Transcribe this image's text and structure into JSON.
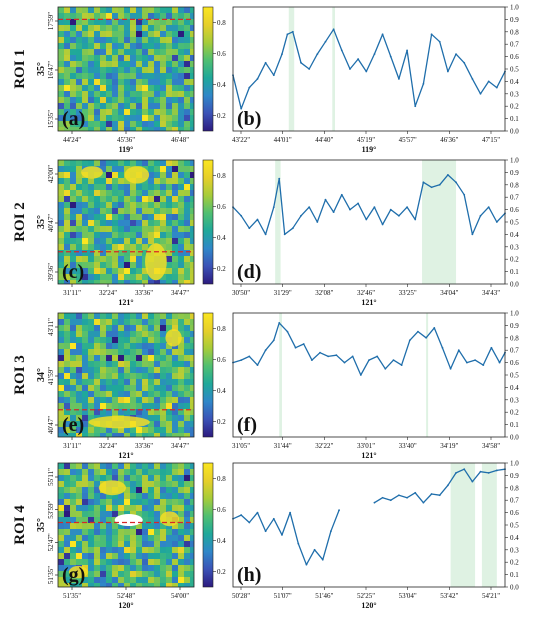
{
  "colors": {
    "line": "#1f6eab",
    "highlight": "#dff2e3",
    "dashed": "#d62728",
    "axis": "#222222",
    "cmap": [
      "#2c1a7e",
      "#3b52b6",
      "#2f87c8",
      "#1fa89a",
      "#4fbf72",
      "#a6cc3a",
      "#e6cf2a",
      "#fbe620"
    ]
  },
  "colorbar": {
    "ticks": [
      "0.2",
      "0.4",
      "0.6",
      "0.8"
    ],
    "range": [
      0.1,
      0.9
    ]
  },
  "panels": [
    {
      "roi_label": "ROI 1",
      "map_letter": "(a)",
      "chart_letter": "(b)",
      "map_lat_deg": "35°",
      "map_yticks": [
        "17'59\"",
        "16'47\"",
        "15'35\""
      ],
      "map_xticks": [
        "44'24\"",
        "45'36\"",
        "46'48\""
      ],
      "map_xdeg": "119°",
      "dashed_row": 0.1,
      "bright_blobs": [],
      "white_blob": false
    },
    {
      "roi_label": "ROI 2",
      "map_letter": "(c)",
      "chart_letter": "(d)",
      "map_lat_deg": "35°",
      "map_yticks": [
        "42'00\"",
        "40'47\"",
        "39'36\""
      ],
      "map_xticks": [
        "31'11\"",
        "32'24\"",
        "33'36\"",
        "34'47\""
      ],
      "map_xdeg": "121°",
      "dashed_row": 0.74,
      "bright_blobs": [
        [
          0.72,
          0.82,
          0.16,
          0.3
        ],
        [
          0.58,
          0.12,
          0.18,
          0.14
        ],
        [
          0.25,
          0.1,
          0.16,
          0.1
        ]
      ],
      "white_blob": false
    },
    {
      "roi_label": "ROI 3",
      "map_letter": "(e)",
      "chart_letter": "(f)",
      "map_lat_deg": "34°",
      "map_yticks": [
        "43'11\"",
        "41'59\"",
        "40'47\""
      ],
      "map_xticks": [
        "31'11\"",
        "32'24\"",
        "33'36\"",
        "34'47\""
      ],
      "map_xdeg": "121°",
      "dashed_row": 0.78,
      "bright_blobs": [
        [
          0.45,
          0.88,
          0.45,
          0.1
        ],
        [
          0.85,
          0.2,
          0.12,
          0.14
        ]
      ],
      "white_blob": false
    },
    {
      "roi_label": "ROI 4",
      "map_letter": "(g)",
      "chart_letter": "(h)",
      "map_lat_deg": "35°",
      "map_yticks": [
        "55'11\"",
        "53'59\"",
        "52'47\"",
        "51'35\""
      ],
      "map_xticks": [
        "51'35\"",
        "52'48\"",
        "54'00\""
      ],
      "map_xdeg": "120°",
      "dashed_row": 0.48,
      "bright_blobs": [
        [
          0.4,
          0.2,
          0.2,
          0.12
        ],
        [
          0.15,
          0.88,
          0.14,
          0.1
        ],
        [
          0.82,
          0.45,
          0.14,
          0.12
        ]
      ],
      "white_blob": true
    }
  ],
  "chart_data": [
    {
      "type": "line",
      "panel": "(b)",
      "xlabel": "119°",
      "xtick_labels": [
        "43'22\"",
        "44'01\"",
        "44'40\"",
        "45'19\"",
        "45'57\"",
        "46'36\"",
        "47'15\""
      ],
      "ylim": [
        0.0,
        1.0
      ],
      "yticks": [
        0.0,
        0.1,
        0.2,
        0.3,
        0.4,
        0.5,
        0.6,
        0.7,
        0.8,
        0.9,
        1.0
      ],
      "highlights": [
        [
          0.205,
          0.225
        ],
        [
          0.365,
          0.375
        ]
      ],
      "x": [
        0.0,
        0.03,
        0.06,
        0.09,
        0.12,
        0.15,
        0.18,
        0.2,
        0.22,
        0.25,
        0.28,
        0.31,
        0.34,
        0.37,
        0.4,
        0.43,
        0.46,
        0.49,
        0.52,
        0.55,
        0.58,
        0.61,
        0.64,
        0.67,
        0.7,
        0.73,
        0.76,
        0.79,
        0.82,
        0.85,
        0.88,
        0.91,
        0.94,
        0.97,
        1.0
      ],
      "y": [
        0.45,
        0.18,
        0.35,
        0.42,
        0.55,
        0.45,
        0.62,
        0.78,
        0.8,
        0.55,
        0.5,
        0.62,
        0.72,
        0.82,
        0.65,
        0.5,
        0.58,
        0.48,
        0.62,
        0.78,
        0.6,
        0.42,
        0.65,
        0.2,
        0.38,
        0.78,
        0.72,
        0.48,
        0.62,
        0.55,
        0.42,
        0.3,
        0.4,
        0.35,
        0.48
      ]
    },
    {
      "type": "line",
      "panel": "(d)",
      "xlabel": "121°",
      "xtick_labels": [
        "30'50\"",
        "31'29\"",
        "32'08\"",
        "32'46\"",
        "33'25\"",
        "34'04\"",
        "34'43\""
      ],
      "ylim": [
        0.0,
        1.0
      ],
      "yticks": [
        0.0,
        0.1,
        0.2,
        0.3,
        0.4,
        0.5,
        0.6,
        0.7,
        0.8,
        0.9,
        1.0
      ],
      "highlights": [
        [
          0.155,
          0.175
        ],
        [
          0.695,
          0.82
        ]
      ],
      "x": [
        0.0,
        0.03,
        0.06,
        0.09,
        0.12,
        0.15,
        0.17,
        0.19,
        0.22,
        0.25,
        0.28,
        0.31,
        0.34,
        0.37,
        0.4,
        0.43,
        0.46,
        0.49,
        0.52,
        0.55,
        0.58,
        0.61,
        0.64,
        0.67,
        0.7,
        0.73,
        0.76,
        0.79,
        0.82,
        0.85,
        0.88,
        0.91,
        0.94,
        0.97,
        1.0
      ],
      "y": [
        0.62,
        0.55,
        0.45,
        0.52,
        0.4,
        0.62,
        0.85,
        0.4,
        0.45,
        0.55,
        0.62,
        0.5,
        0.68,
        0.58,
        0.72,
        0.6,
        0.65,
        0.52,
        0.62,
        0.48,
        0.6,
        0.55,
        0.62,
        0.52,
        0.82,
        0.78,
        0.8,
        0.88,
        0.82,
        0.72,
        0.4,
        0.55,
        0.62,
        0.5,
        0.57
      ]
    },
    {
      "type": "line",
      "panel": "(f)",
      "xlabel": "121°",
      "xtick_labels": [
        "31'05\"",
        "31'44\"",
        "32'22\"",
        "33'01\"",
        "33'40\"",
        "34'19\"",
        "34'58\""
      ],
      "ylim": [
        0.0,
        1.0
      ],
      "yticks": [
        0.0,
        0.1,
        0.2,
        0.3,
        0.4,
        0.5,
        0.6,
        0.7,
        0.8,
        0.9,
        1.0
      ],
      "highlights": [
        [
          0.17,
          0.18
        ],
        [
          0.71,
          0.715
        ]
      ],
      "x": [
        0.0,
        0.03,
        0.06,
        0.09,
        0.12,
        0.15,
        0.17,
        0.2,
        0.23,
        0.26,
        0.29,
        0.32,
        0.35,
        0.38,
        0.41,
        0.44,
        0.47,
        0.5,
        0.53,
        0.56,
        0.59,
        0.62,
        0.65,
        0.68,
        0.71,
        0.74,
        0.77,
        0.8,
        0.83,
        0.86,
        0.89,
        0.92,
        0.95,
        0.98,
        1.0
      ],
      "y": [
        0.6,
        0.62,
        0.65,
        0.58,
        0.7,
        0.78,
        0.92,
        0.85,
        0.72,
        0.75,
        0.62,
        0.68,
        0.65,
        0.66,
        0.6,
        0.65,
        0.5,
        0.62,
        0.65,
        0.55,
        0.62,
        0.58,
        0.78,
        0.85,
        0.8,
        0.88,
        0.72,
        0.55,
        0.7,
        0.6,
        0.62,
        0.58,
        0.72,
        0.6,
        0.68
      ]
    },
    {
      "type": "line",
      "panel": "(h)",
      "xlabel": "120°",
      "xtick_labels": [
        "50'28\"",
        "51'07\"",
        "51'46\"",
        "52'25\"",
        "53'04\"",
        "53'42\"",
        "54'21\""
      ],
      "ylim": [
        0.0,
        1.0
      ],
      "yticks": [
        0.0,
        0.1,
        0.2,
        0.3,
        0.4,
        0.5,
        0.6,
        0.7,
        0.8,
        0.9,
        1.0
      ],
      "highlights": [
        [
          0.8,
          0.89
        ],
        [
          0.915,
          0.97
        ]
      ],
      "segments": [
        {
          "x": [
            0.0,
            0.03,
            0.06,
            0.09,
            0.12,
            0.15,
            0.18,
            0.21,
            0.24,
            0.27,
            0.3,
            0.33,
            0.36,
            0.39
          ],
          "y": [
            0.55,
            0.58,
            0.52,
            0.6,
            0.45,
            0.55,
            0.42,
            0.6,
            0.35,
            0.18,
            0.3,
            0.22,
            0.45,
            0.62
          ]
        },
        {
          "x": [
            0.52,
            0.55,
            0.58,
            0.61,
            0.64,
            0.67,
            0.7,
            0.73,
            0.76,
            0.79,
            0.82,
            0.85,
            0.88,
            0.91,
            0.94,
            0.97,
            1.0
          ],
          "y": [
            0.68,
            0.72,
            0.7,
            0.74,
            0.72,
            0.76,
            0.68,
            0.75,
            0.74,
            0.82,
            0.92,
            0.95,
            0.85,
            0.93,
            0.92,
            0.94,
            0.95
          ]
        }
      ]
    }
  ]
}
